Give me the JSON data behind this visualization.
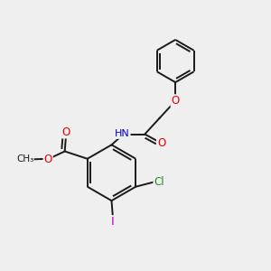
{
  "background_color": "#efefef",
  "bond_color": "#1a1a1a",
  "bond_width": 1.4,
  "atom_colors": {
    "O": "#e00000",
    "N": "#0000cc",
    "Cl": "#228822",
    "I": "#bb00bb",
    "C": "#1a1a1a",
    "H": "#777777"
  },
  "figsize": [
    3.0,
    3.0
  ],
  "dpi": 100,
  "xlim": [
    0,
    10
  ],
  "ylim": [
    0,
    10
  ]
}
